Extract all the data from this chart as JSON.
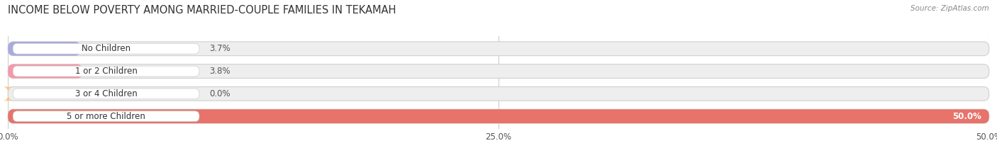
{
  "title": "INCOME BELOW POVERTY AMONG MARRIED-COUPLE FAMILIES IN TEKAMAH",
  "source": "Source: ZipAtlas.com",
  "categories": [
    "No Children",
    "1 or 2 Children",
    "3 or 4 Children",
    "5 or more Children"
  ],
  "values": [
    3.7,
    3.8,
    0.0,
    50.0
  ],
  "bar_colors": [
    "#aaaadd",
    "#f599aa",
    "#f5c888",
    "#e8736a"
  ],
  "bar_bg_color": "#eeeeee",
  "xlim": [
    0,
    50
  ],
  "xticks": [
    0,
    25,
    50
  ],
  "xtick_labels": [
    "0.0%",
    "25.0%",
    "50.0%"
  ],
  "value_fontsize": 8.5,
  "label_fontsize": 8.5,
  "title_fontsize": 10.5,
  "background_color": "#ffffff"
}
